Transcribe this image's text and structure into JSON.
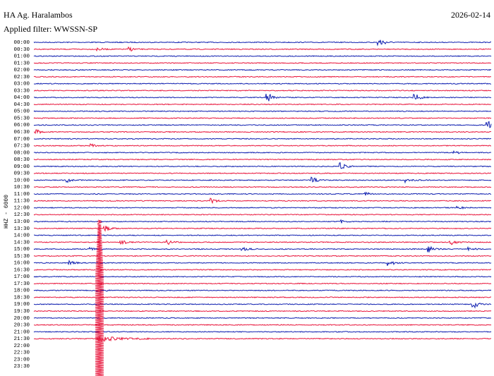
{
  "header": {
    "station": "HA Ag. Haralambos",
    "date": "2026-02-14",
    "filter": "Applied filter: WWSSN-SP"
  },
  "axis_label": "HHZ - 6000",
  "rows": [
    "00:00",
    "00:30",
    "01:00",
    "01:30",
    "02:00",
    "02:30",
    "03:00",
    "03:30",
    "04:00",
    "04:30",
    "05:00",
    "05:30",
    "06:00",
    "06:30",
    "07:00",
    "07:30",
    "08:00",
    "08:30",
    "09:00",
    "09:30",
    "10:00",
    "10:30",
    "11:00",
    "11:30",
    "12:00",
    "12:30",
    "13:00",
    "13:30",
    "14:00",
    "14:30",
    "15:00",
    "15:30",
    "16:00",
    "16:30",
    "17:00",
    "17:30",
    "18:00",
    "18:30",
    "19:00",
    "19:30",
    "20:00",
    "20:30",
    "21:00",
    "21:30",
    "22:00",
    "22:30",
    "23:00",
    "23:30"
  ]
}
